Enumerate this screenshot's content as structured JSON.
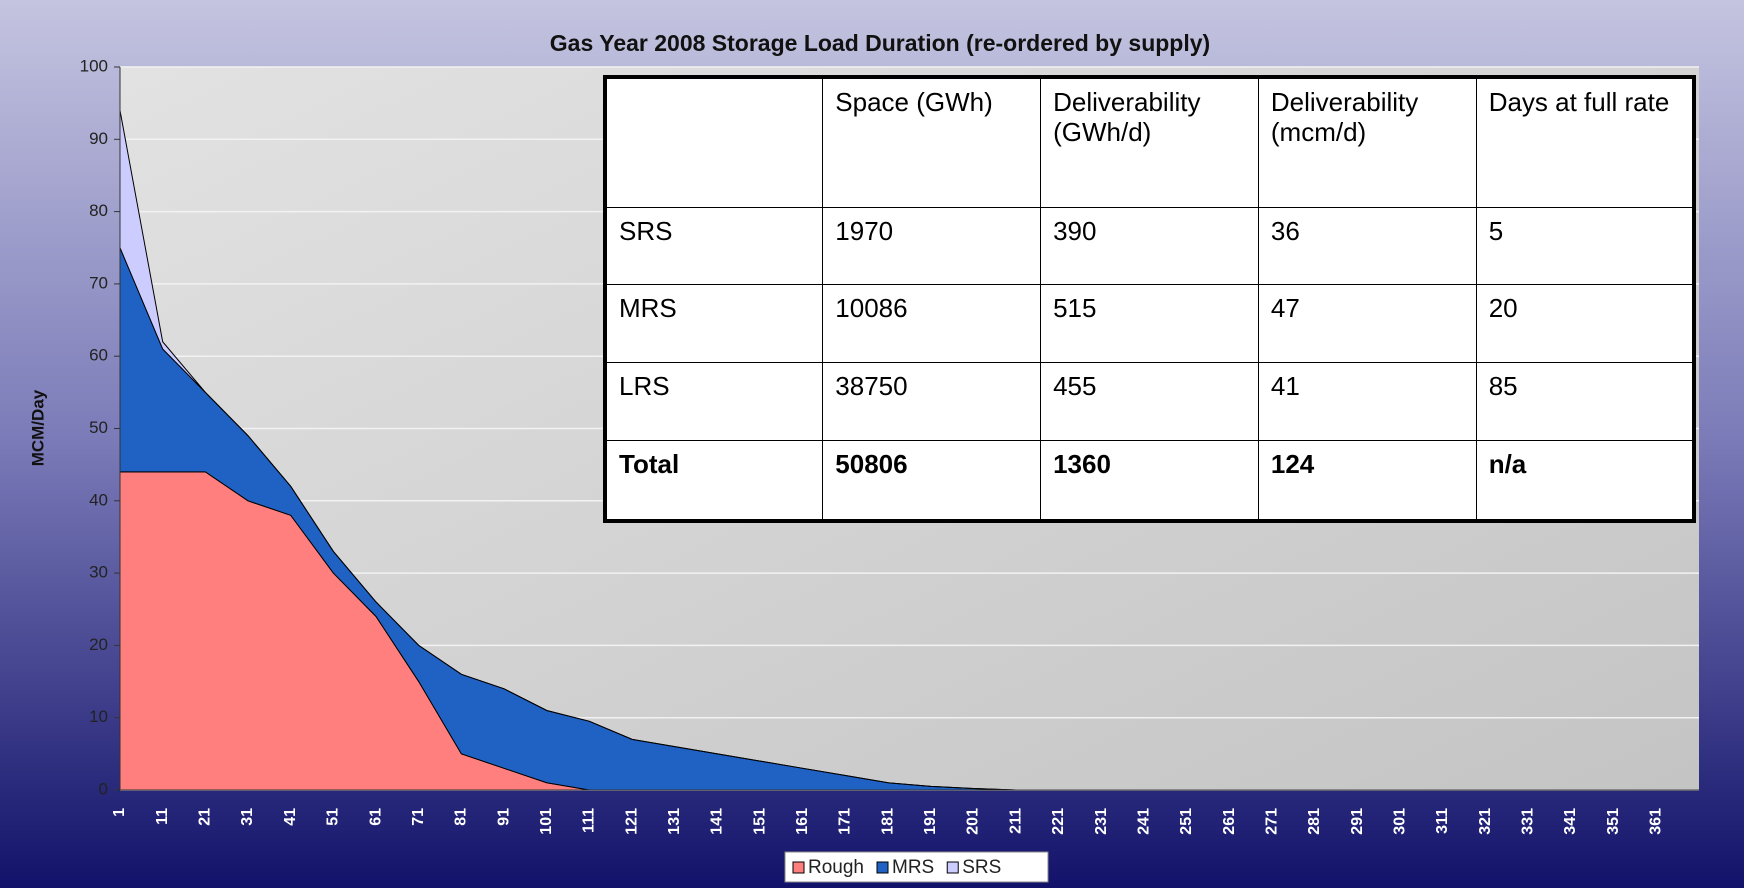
{
  "chart_data": {
    "type": "stacked_area",
    "title": "Gas Year 2008 Storage Load Duration (re-ordered by supply)",
    "y_label": "MCM/Day",
    "categories": [
      "1",
      "11",
      "21",
      "31",
      "41",
      "51",
      "61",
      "71",
      "81",
      "91",
      "101",
      "111",
      "121",
      "131",
      "141",
      "151",
      "161",
      "171",
      "181",
      "191",
      "201",
      "211",
      "221",
      "231",
      "241",
      "251",
      "261",
      "271",
      "281",
      "291",
      "301",
      "311",
      "321",
      "331",
      "341",
      "351",
      "361"
    ],
    "series": [
      {
        "name": "Rough",
        "color": "#ff7f7f",
        "values": [
          44,
          44,
          44,
          40,
          38,
          30,
          24,
          15,
          5,
          3,
          1,
          0,
          0,
          0,
          0,
          0,
          0,
          0,
          0,
          0,
          0,
          0,
          0,
          0,
          0,
          0,
          0,
          0,
          0,
          0,
          0,
          0,
          0,
          0,
          0,
          0,
          0
        ]
      },
      {
        "name": "MRS",
        "color": "#1f62c4",
        "values": [
          31,
          17,
          11,
          9,
          4,
          3,
          2,
          5,
          11,
          11,
          10,
          9.5,
          7,
          6,
          5,
          4,
          3,
          2,
          1,
          0.5,
          0.2,
          0,
          0,
          0,
          0,
          0,
          0,
          0,
          0,
          0,
          0,
          0,
          0,
          0,
          0,
          0,
          0
        ]
      },
      {
        "name": "SRS",
        "color": "#ccccff",
        "values": [
          19,
          1,
          0,
          0,
          0,
          0,
          0,
          0,
          0,
          0,
          0,
          0,
          0,
          0,
          0,
          0,
          0,
          0,
          0,
          0,
          0,
          0,
          0,
          0,
          0,
          0,
          0,
          0,
          0,
          0,
          0,
          0,
          0,
          0,
          0,
          0,
          0
        ]
      }
    ],
    "ylim": [
      0,
      100
    ],
    "yticks": [
      0,
      10,
      20,
      30,
      40,
      50,
      60,
      70,
      80,
      90,
      100
    ],
    "grid": true,
    "legend": "bottom"
  },
  "table": {
    "columns": [
      "Space (GWh)",
      "Deliverability (GWh/d)",
      "Deliverability (mcm/d)",
      "Days at full rate"
    ],
    "rows": [
      [
        "SRS",
        1970,
        390,
        36,
        5
      ],
      [
        "MRS",
        10086,
        515,
        47,
        20
      ],
      [
        "LRS",
        38750,
        455,
        41,
        85
      ],
      [
        "Total",
        50806,
        1360,
        124,
        "n/a"
      ]
    ]
  }
}
